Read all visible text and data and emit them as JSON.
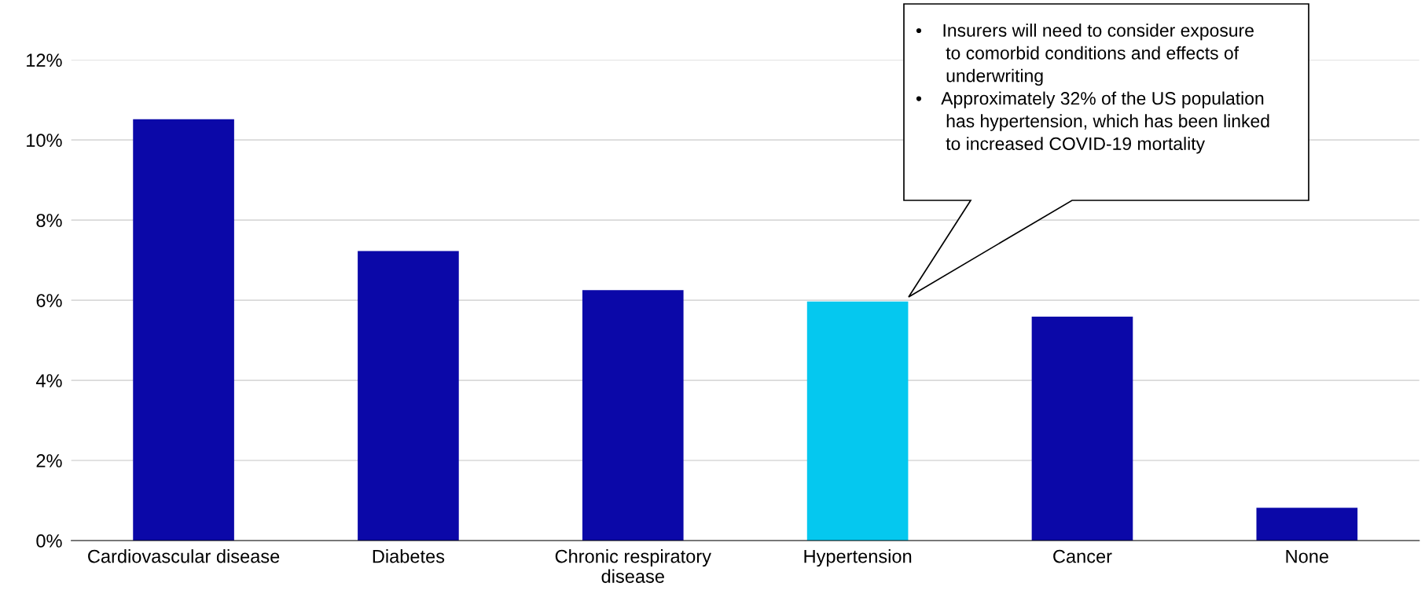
{
  "chart_data": {
    "type": "bar",
    "categories": [
      "Cardiovascular disease",
      "Diabetes",
      "Chronic respiratory\ndisease",
      "Hypertension",
      "Cancer",
      "None"
    ],
    "values": [
      10.52,
      7.23,
      6.25,
      5.97,
      5.59,
      0.82
    ],
    "colors": [
      "#0b08a8",
      "#0b08a8",
      "#0b08a8",
      "#05c8ef",
      "#0b08a8",
      "#0b08a8"
    ],
    "ylim": [
      0,
      12
    ],
    "yticks": [
      {
        "value": 0,
        "label": "0%"
      },
      {
        "value": 2,
        "label": "2%"
      },
      {
        "value": 4,
        "label": "4%"
      },
      {
        "value": 6,
        "label": "6%"
      },
      {
        "value": 8,
        "label": "8%"
      },
      {
        "value": 10,
        "label": "10%"
      },
      {
        "value": 12,
        "label": "12%"
      }
    ],
    "grid": "y",
    "annotations": [
      "•    Insurers will need to consider exposure\n      to comorbid conditions and effects of\n      underwriting\n•    Approximately 32% of the US population\n      has hypertension, which has been linked\n      to increased COVID-19 mortality"
    ]
  }
}
